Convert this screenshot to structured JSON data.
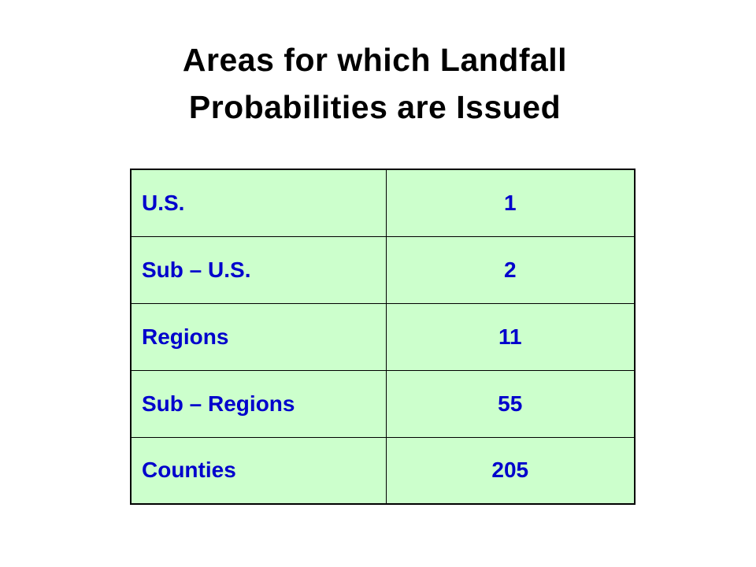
{
  "title": {
    "line1": "Areas for which Landfall",
    "line2": "Probabilities are Issued"
  },
  "table": {
    "rows": [
      {
        "area": "U.S.",
        "count": "1"
      },
      {
        "area": "Sub – U.S.",
        "count": "2"
      },
      {
        "area": "Regions",
        "count": "11"
      },
      {
        "area": "Sub – Regions",
        "count": "55"
      },
      {
        "area": "Counties",
        "count": "205"
      }
    ]
  },
  "colors": {
    "background": "#ffffff",
    "title_text": "#000000",
    "table_fill": "#ccffcc",
    "table_text": "#0000cc",
    "table_border": "#000000"
  }
}
